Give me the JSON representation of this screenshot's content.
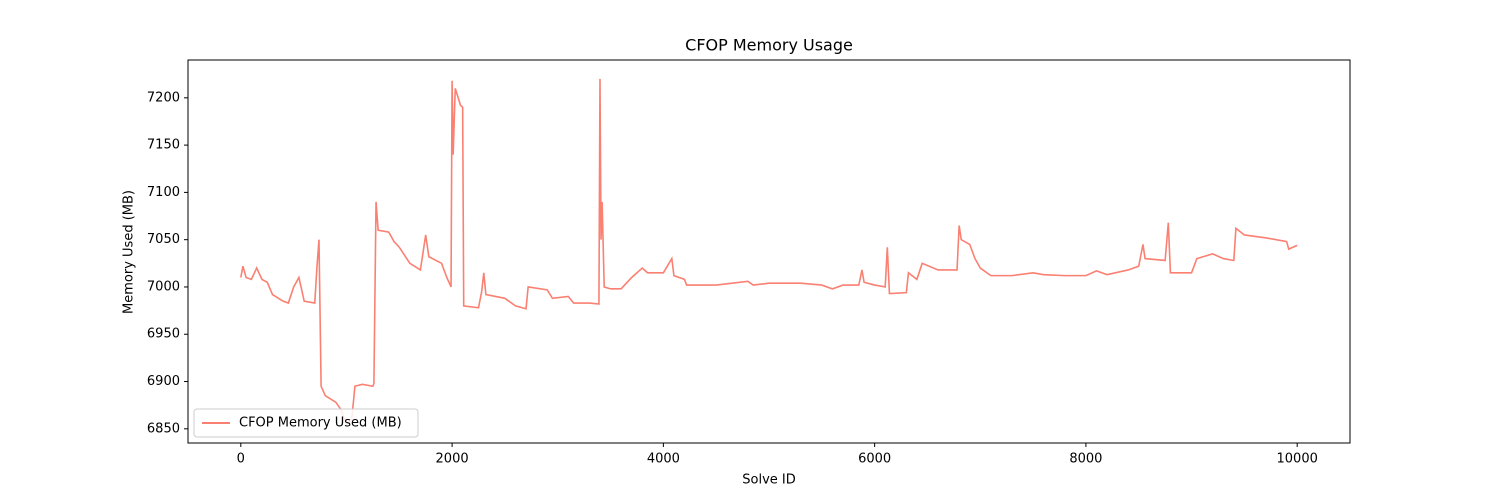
{
  "chart_data": {
    "type": "line",
    "title": "CFOP Memory Usage",
    "x_label": "Solve ID",
    "y_label": "Memory Used (MB)",
    "x": [
      0,
      20,
      50,
      100,
      150,
      200,
      250,
      300,
      400,
      450,
      500,
      550,
      600,
      700,
      720,
      740,
      760,
      800,
      900,
      950,
      1000,
      1050,
      1080,
      1150,
      1250,
      1260,
      1280,
      1300,
      1400,
      1450,
      1500,
      1600,
      1700,
      1750,
      1780,
      1900,
      1950,
      1990,
      2000,
      2010,
      2030,
      2080,
      2100,
      2110,
      2250,
      2280,
      2300,
      2320,
      2500,
      2600,
      2700,
      2720,
      2900,
      2950,
      3100,
      3150,
      3300,
      3390,
      3400,
      3410,
      3420,
      3440,
      3500,
      3600,
      3700,
      3800,
      3850,
      4000,
      4080,
      4100,
      4200,
      4220,
      4500,
      4800,
      4850,
      5000,
      5300,
      5500,
      5600,
      5700,
      5850,
      5880,
      5900,
      6000,
      6100,
      6120,
      6140,
      6300,
      6320,
      6400,
      6450,
      6600,
      6780,
      6800,
      6820,
      6900,
      6950,
      7000,
      7100,
      7300,
      7500,
      7600,
      7800,
      8000,
      8100,
      8200,
      8400,
      8500,
      8540,
      8560,
      8750,
      8780,
      8800,
      9000,
      9050,
      9200,
      9300,
      9400,
      9420,
      9500,
      9700,
      9900,
      9920,
      10000
    ],
    "series": [
      {
        "name": "CFOP Memory Used (MB)",
        "color": "#fa8072",
        "values": [
          7010,
          7022,
          7010,
          7008,
          7020,
          7008,
          7005,
          6992,
          6985,
          6983,
          7000,
          7010,
          6985,
          6983,
          7020,
          7050,
          6895,
          6885,
          6878,
          6870,
          6855,
          6860,
          6895,
          6897,
          6895,
          6898,
          7090,
          7060,
          7058,
          7048,
          7042,
          7025,
          7018,
          7055,
          7032,
          7025,
          7010,
          7000,
          7218,
          7140,
          7210,
          7192,
          7190,
          6980,
          6978,
          6995,
          7015,
          6992,
          6988,
          6980,
          6977,
          7000,
          6997,
          6988,
          6990,
          6983,
          6983,
          6982,
          7220,
          7050,
          7090,
          7000,
          6998,
          6998,
          7010,
          7020,
          7015,
          7015,
          7030,
          7012,
          7008,
          7002,
          7002,
          7006,
          7002,
          7004,
          7004,
          7002,
          6998,
          7002,
          7002,
          7018,
          7005,
          7002,
          7000,
          7042,
          6993,
          6994,
          7015,
          7008,
          7025,
          7018,
          7018,
          7065,
          7050,
          7045,
          7030,
          7020,
          7012,
          7012,
          7015,
          7013,
          7012,
          7012,
          7017,
          7013,
          7018,
          7022,
          7045,
          7030,
          7028,
          7068,
          7015,
          7015,
          7030,
          7035,
          7030,
          7028,
          7062,
          7055,
          7052,
          7048,
          7040,
          7044
        ]
      }
    ],
    "xlim": [
      -500,
      10500
    ],
    "ylim": [
      6835,
      7240
    ],
    "xticks": [
      0,
      2000,
      4000,
      6000,
      8000,
      10000
    ],
    "yticks": [
      6850,
      6900,
      6950,
      7000,
      7050,
      7100,
      7150,
      7200
    ],
    "legend": "lower left"
  }
}
